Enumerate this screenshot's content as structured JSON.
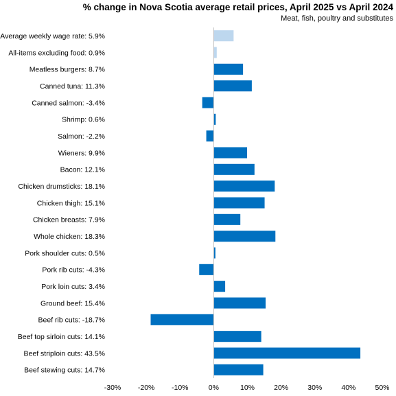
{
  "chart_data": {
    "type": "bar",
    "orientation": "horizontal",
    "title": "% change in Nova Scotia average retail prices, April 2025 vs April 2024",
    "subtitle": "Meat,  fish, poultry and substitutes",
    "xlim": [
      -30,
      50
    ],
    "x_ticks": [
      "-30%",
      "-20%",
      "-10%",
      "0%",
      "10%",
      "20%",
      "30%",
      "40%",
      "50%"
    ],
    "grid": false,
    "legend": "none",
    "colors": {
      "highlight": "#bdd7ee",
      "main": "#0070c0",
      "axis": "#c0c0c0"
    },
    "categories": [
      "Average weekly wage rate: 5.9%",
      "All-items excluding food: 0.9%",
      "Meatless burgers: 8.7%",
      "Canned tuna: 11.3%",
      "Canned salmon: -3.4%",
      "Shrimp: 0.6%",
      "Salmon: -2.2%",
      "Wieners: 9.9%",
      "Bacon: 12.1%",
      "Chicken drumsticks: 18.1%",
      "Chicken thigh: 15.1%",
      "Chicken breasts: 7.9%",
      "Whole chicken: 18.3%",
      "Pork shoulder cuts: 0.5%",
      "Pork rib cuts: -4.3%",
      "Pork loin cuts: 3.4%",
      "Ground beef: 15.4%",
      "Beef rib cuts: -18.7%",
      "Beef top sirloin cuts: 14.1%",
      "Beef striploin cuts: 43.5%",
      "Beef stewing cuts: 14.7%"
    ],
    "values": [
      5.9,
      0.9,
      8.7,
      11.3,
      -3.4,
      0.6,
      -2.2,
      9.9,
      12.1,
      18.1,
      15.1,
      7.9,
      18.3,
      0.5,
      -4.3,
      3.4,
      15.4,
      -18.7,
      14.1,
      43.5,
      14.7
    ],
    "highlighted": [
      true,
      true,
      false,
      false,
      false,
      false,
      false,
      false,
      false,
      false,
      false,
      false,
      false,
      false,
      false,
      false,
      false,
      false,
      false,
      false,
      false
    ]
  }
}
